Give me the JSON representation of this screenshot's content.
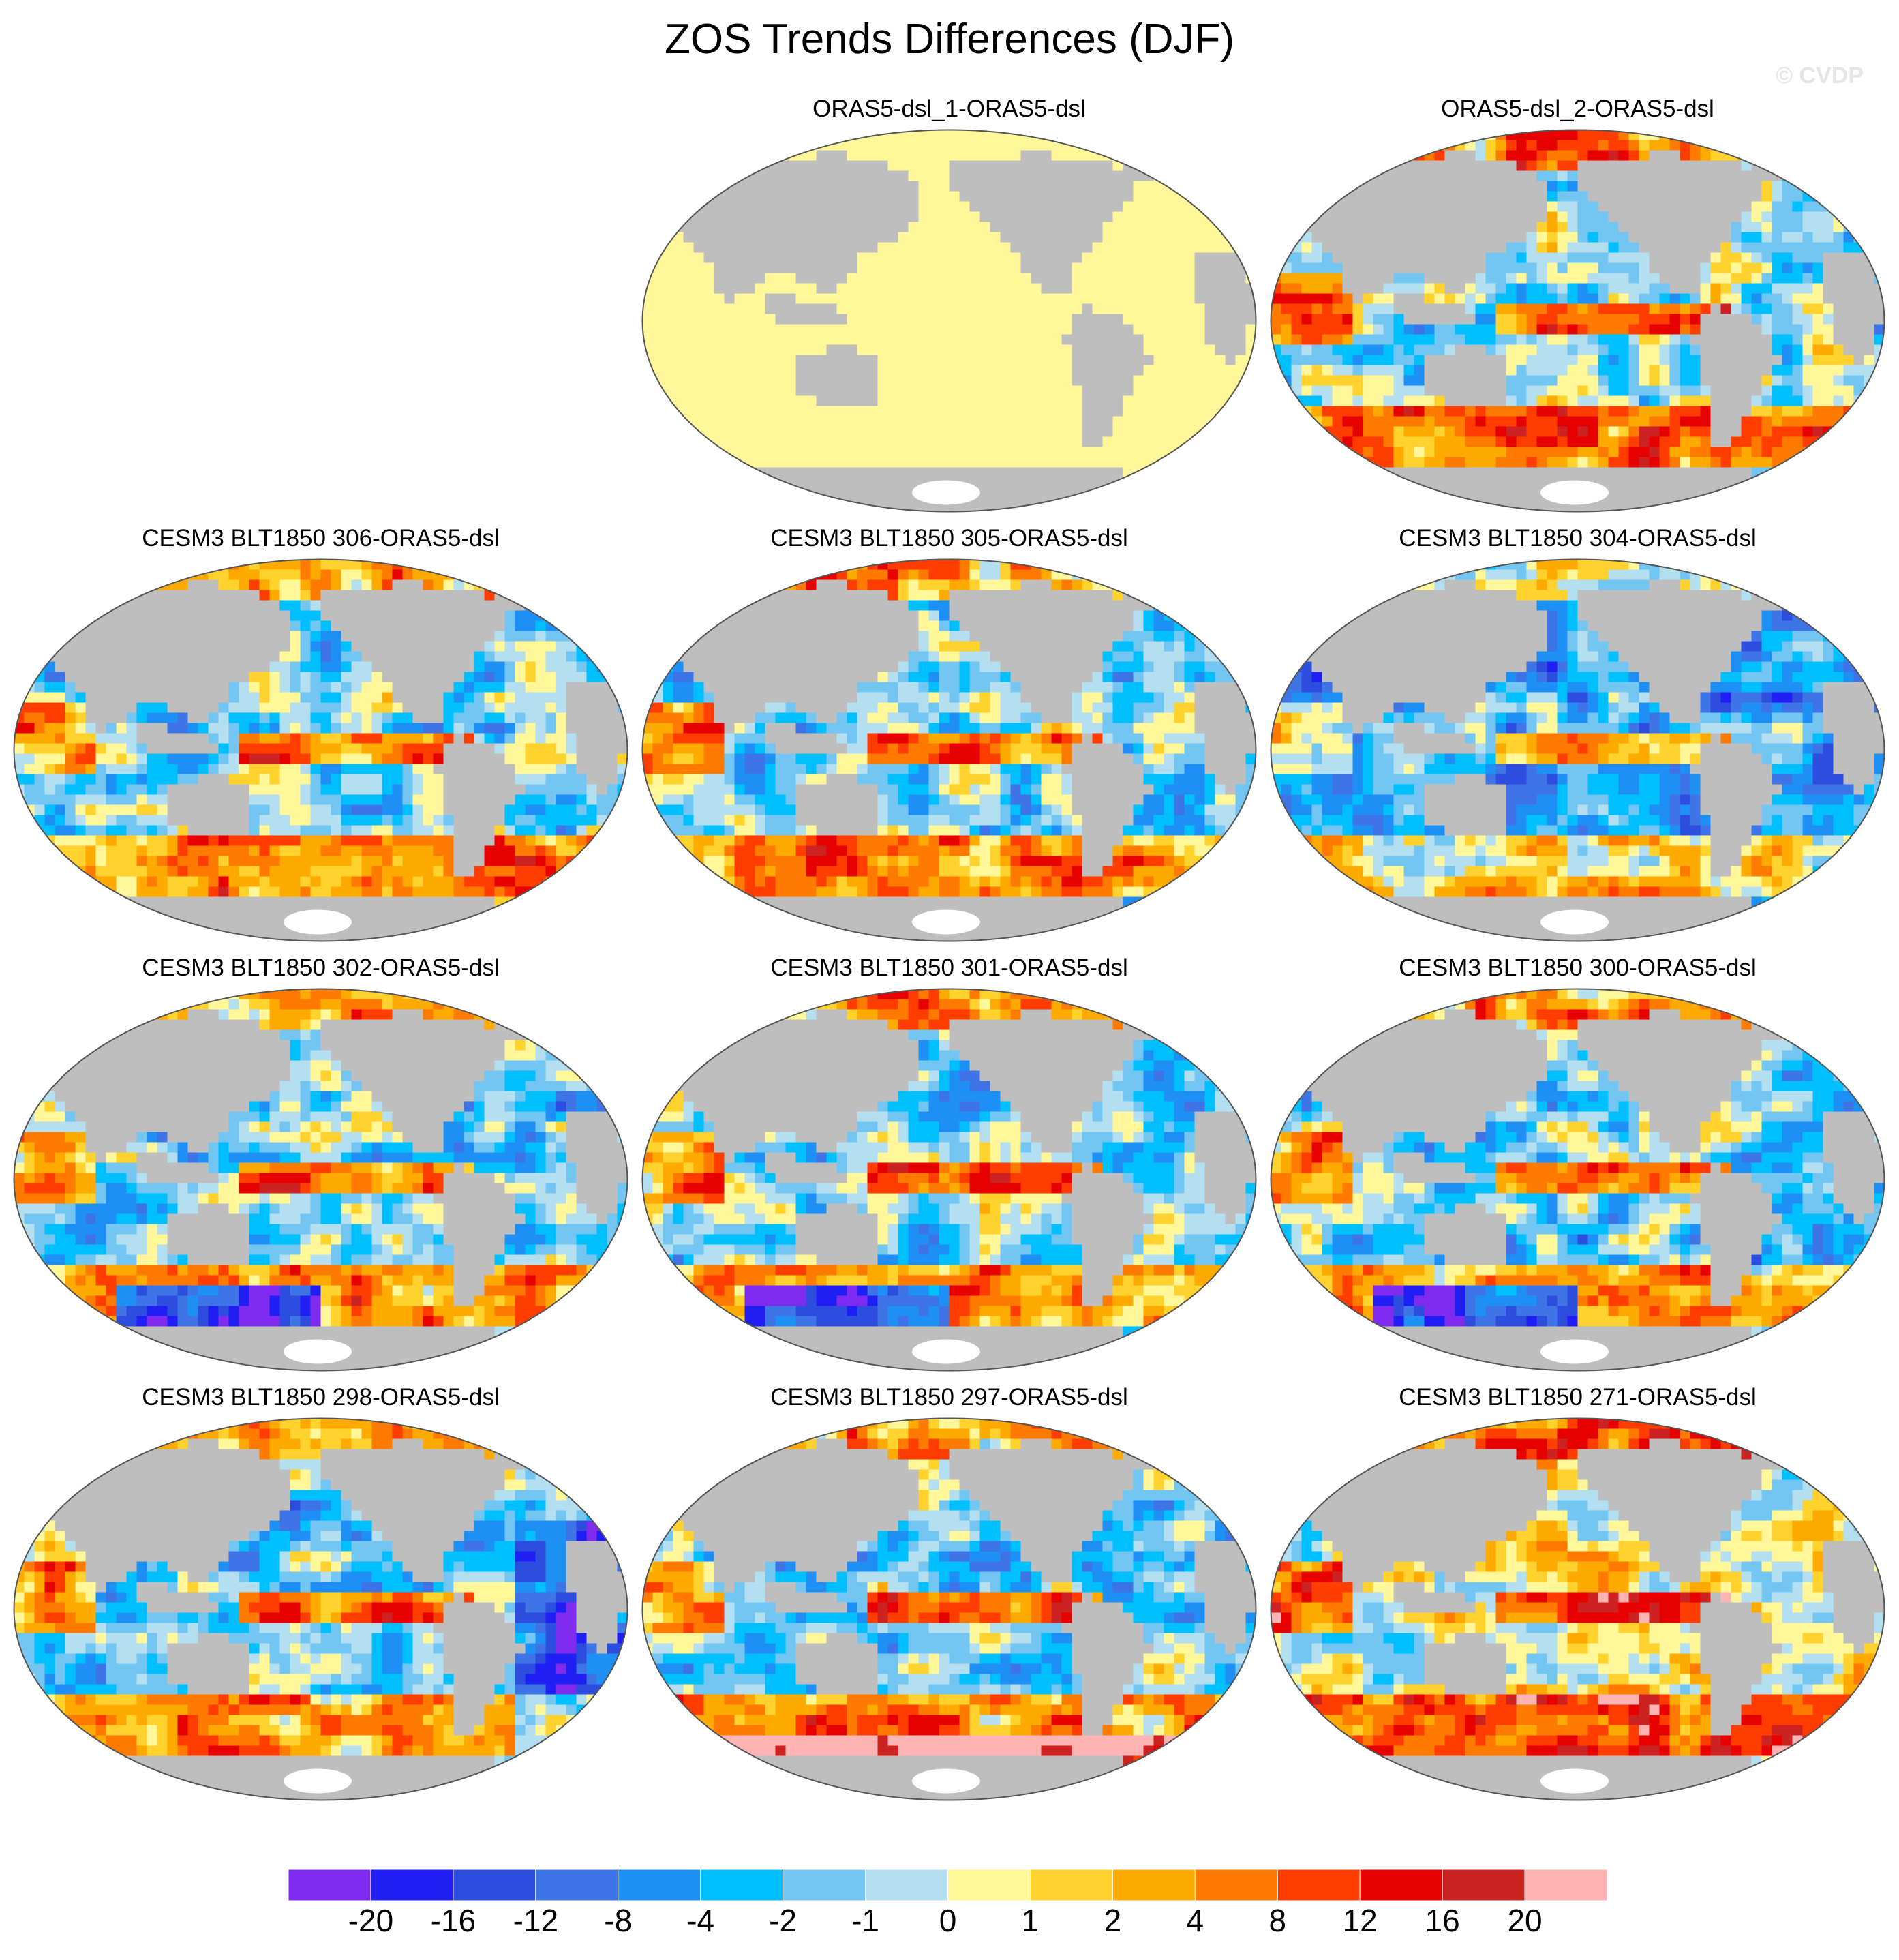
{
  "title": "ZOS Trends Differences (DJF)",
  "watermark": "© CVDP",
  "land_color": "#bebebe",
  "ice_color": "#ffffff",
  "panels": [
    {
      "label": "ORAS5-dsl_1-ORAS5-dsl",
      "pattern": "uniform"
    },
    {
      "label": "ORAS5-dsl_2-ORAS5-dsl",
      "pattern": "oras2"
    },
    {
      "label": "CESM3 BLT1850 306-ORAS5-dsl",
      "pattern": "model"
    },
    {
      "label": "CESM3 BLT1850 305-ORAS5-dsl",
      "pattern": "model"
    },
    {
      "label": "CESM3 BLT1850 304-ORAS5-dsl",
      "pattern": "model_neg"
    },
    {
      "label": "CESM3 BLT1850 302-ORAS5-dsl",
      "pattern": "model_so_neg"
    },
    {
      "label": "CESM3 BLT1850 301-ORAS5-dsl",
      "pattern": "model_so_neg"
    },
    {
      "label": "CESM3 BLT1850 300-ORAS5-dsl",
      "pattern": "model_so_neg"
    },
    {
      "label": "CESM3 BLT1850 298-ORAS5-dsl",
      "pattern": "model_atl_neg"
    },
    {
      "label": "CESM3 BLT1850 297-ORAS5-dsl",
      "pattern": "model_so_pos"
    },
    {
      "label": "CESM3 BLT1850 271-ORAS5-dsl",
      "pattern": "model_pos"
    }
  ],
  "colorbar": {
    "colors": [
      "#7f2bef",
      "#1f1ff4",
      "#2d4ddf",
      "#3e74e6",
      "#1e90f5",
      "#00bfff",
      "#74c6f2",
      "#b4dff0",
      "#fff799",
      "#ffd22e",
      "#ffaa00",
      "#ff7a00",
      "#ff3d00",
      "#e60000",
      "#cc2222",
      "#ffb4b4"
    ],
    "labels": [
      "-20",
      "-16",
      "-12",
      "-8",
      "-4",
      "-2",
      "-1",
      "0",
      "1",
      "2",
      "4",
      "8",
      "12",
      "16",
      "20"
    ]
  }
}
